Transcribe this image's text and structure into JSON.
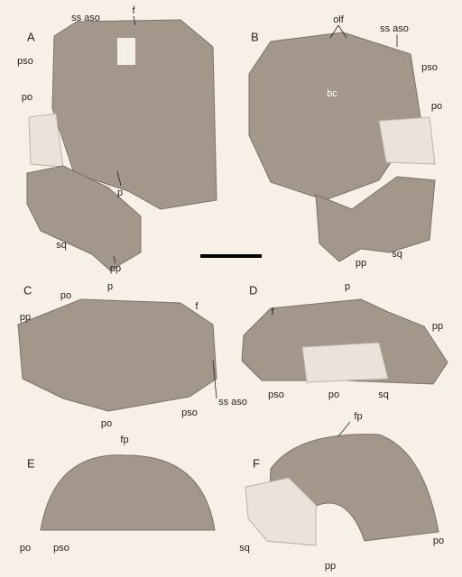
{
  "panels": [
    {
      "letter": "A",
      "labels": [
        "f",
        "ss aso",
        "pso",
        "po",
        "p",
        "sq",
        "pp"
      ]
    },
    {
      "letter": "B",
      "labels": [
        "olf",
        "ss aso",
        "pso",
        "bc",
        "po",
        "sq",
        "pp"
      ]
    },
    {
      "letter": "C",
      "labels": [
        "p",
        "po",
        "pp",
        "f",
        "ss aso",
        "pso",
        "po"
      ]
    },
    {
      "letter": "D",
      "labels": [
        "p",
        "f",
        "pp",
        "pso",
        "po",
        "sq"
      ]
    },
    {
      "letter": "E",
      "labels": [
        "fp",
        "po",
        "pso"
      ]
    },
    {
      "letter": "F",
      "labels": [
        "fp",
        "sq",
        "pp",
        "po"
      ]
    }
  ]
}
